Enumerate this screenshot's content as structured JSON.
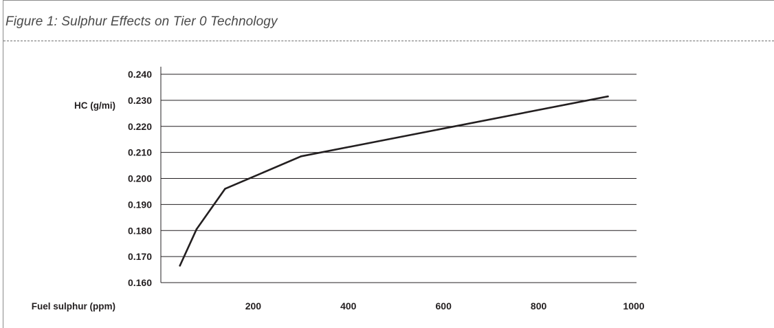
{
  "figure": {
    "title": "Figure 1: Sulphur Effects on Tier 0 Technology"
  },
  "chart_data": {
    "type": "line",
    "title": "Figure 1: Sulphur Effects on Tier 0 Technology",
    "xlabel": "Fuel sulphur (ppm)",
    "ylabel": "HC (g/mi)",
    "xlim": [
      0,
      1000
    ],
    "ylim": [
      0.16,
      0.24
    ],
    "x_ticks": [
      "200",
      "400",
      "600",
      "800",
      "1000"
    ],
    "y_ticks": [
      "0.160",
      "0.170",
      "0.180",
      "0.190",
      "0.200",
      "0.210",
      "0.220",
      "0.230",
      "0.240"
    ],
    "grid": "horizontal",
    "series": [
      {
        "color": "#231f20",
        "points": [
          {
            "x": 40,
            "y": 0.1665
          },
          {
            "x": 75,
            "y": 0.1805
          },
          {
            "x": 135,
            "y": 0.196
          },
          {
            "x": 295,
            "y": 0.2085
          },
          {
            "x": 940,
            "y": 0.2315
          }
        ]
      }
    ]
  }
}
